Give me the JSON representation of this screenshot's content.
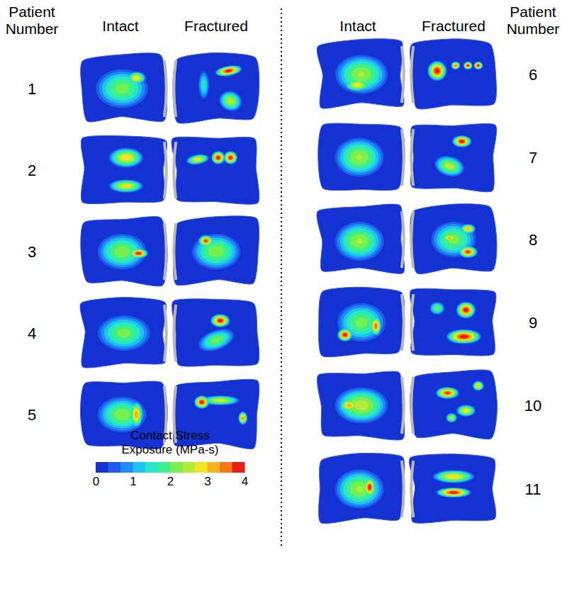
{
  "header": {
    "patient_label": [
      "Patient",
      "Number"
    ],
    "intact": "Intact",
    "fractured": "Fractured"
  },
  "chart_data": {
    "type": "heatmap",
    "panels": [
      {
        "patient": 1,
        "intact": [
          2.2,
          3.0
        ],
        "fractured": [
          4.0,
          2.6,
          1.6
        ]
      },
      {
        "patient": 2,
        "intact": [
          3.0,
          2.9
        ],
        "fractured": [
          4.0,
          4.0,
          3.0
        ]
      },
      {
        "patient": 3,
        "intact": [
          2.3,
          4.0
        ],
        "fractured": [
          2.3,
          3.8
        ]
      },
      {
        "patient": 4,
        "intact": [
          2.2
        ],
        "fractured": [
          4.0,
          2.2
        ]
      },
      {
        "patient": 5,
        "intact": [
          2.3,
          3.3
        ],
        "fractured": [
          4.0,
          2.8,
          3.5
        ]
      },
      {
        "patient": 6,
        "intact": [
          2.4,
          2.9
        ],
        "fractured": [
          4.0,
          3.6,
          4.0,
          4.0
        ]
      },
      {
        "patient": 7,
        "intact": [
          2.4
        ],
        "fractured": [
          4.0,
          2.6
        ]
      },
      {
        "patient": 8,
        "intact": [
          2.4
        ],
        "fractured": [
          2.2,
          3.3,
          3.3,
          3.8
        ]
      },
      {
        "patient": 9,
        "intact": [
          2.2,
          4.0,
          3.6
        ],
        "fractured": [
          4.0,
          4.0,
          2.2
        ]
      },
      {
        "patient": 10,
        "intact": [
          2.6,
          3.3
        ],
        "fractured": [
          3.8,
          3.2,
          3.0,
          2.6
        ]
      },
      {
        "patient": 11,
        "intact": [
          2.4,
          4.0
        ],
        "fractured": [
          4.0,
          3.0
        ]
      }
    ],
    "colorbar": {
      "title": [
        "Contact Stress",
        "Exposure (MPa-s)"
      ],
      "range": [
        0,
        4
      ],
      "ticks": [
        0,
        1,
        2,
        3,
        4
      ],
      "colors": [
        "#1432d2",
        "#1e5aeb",
        "#1e8cf5",
        "#1ec3f0",
        "#28e6c8",
        "#3cf08c",
        "#78f050",
        "#b4ec3c",
        "#f0e628",
        "#f5b41e",
        "#f57819",
        "#e61e14"
      ]
    }
  }
}
